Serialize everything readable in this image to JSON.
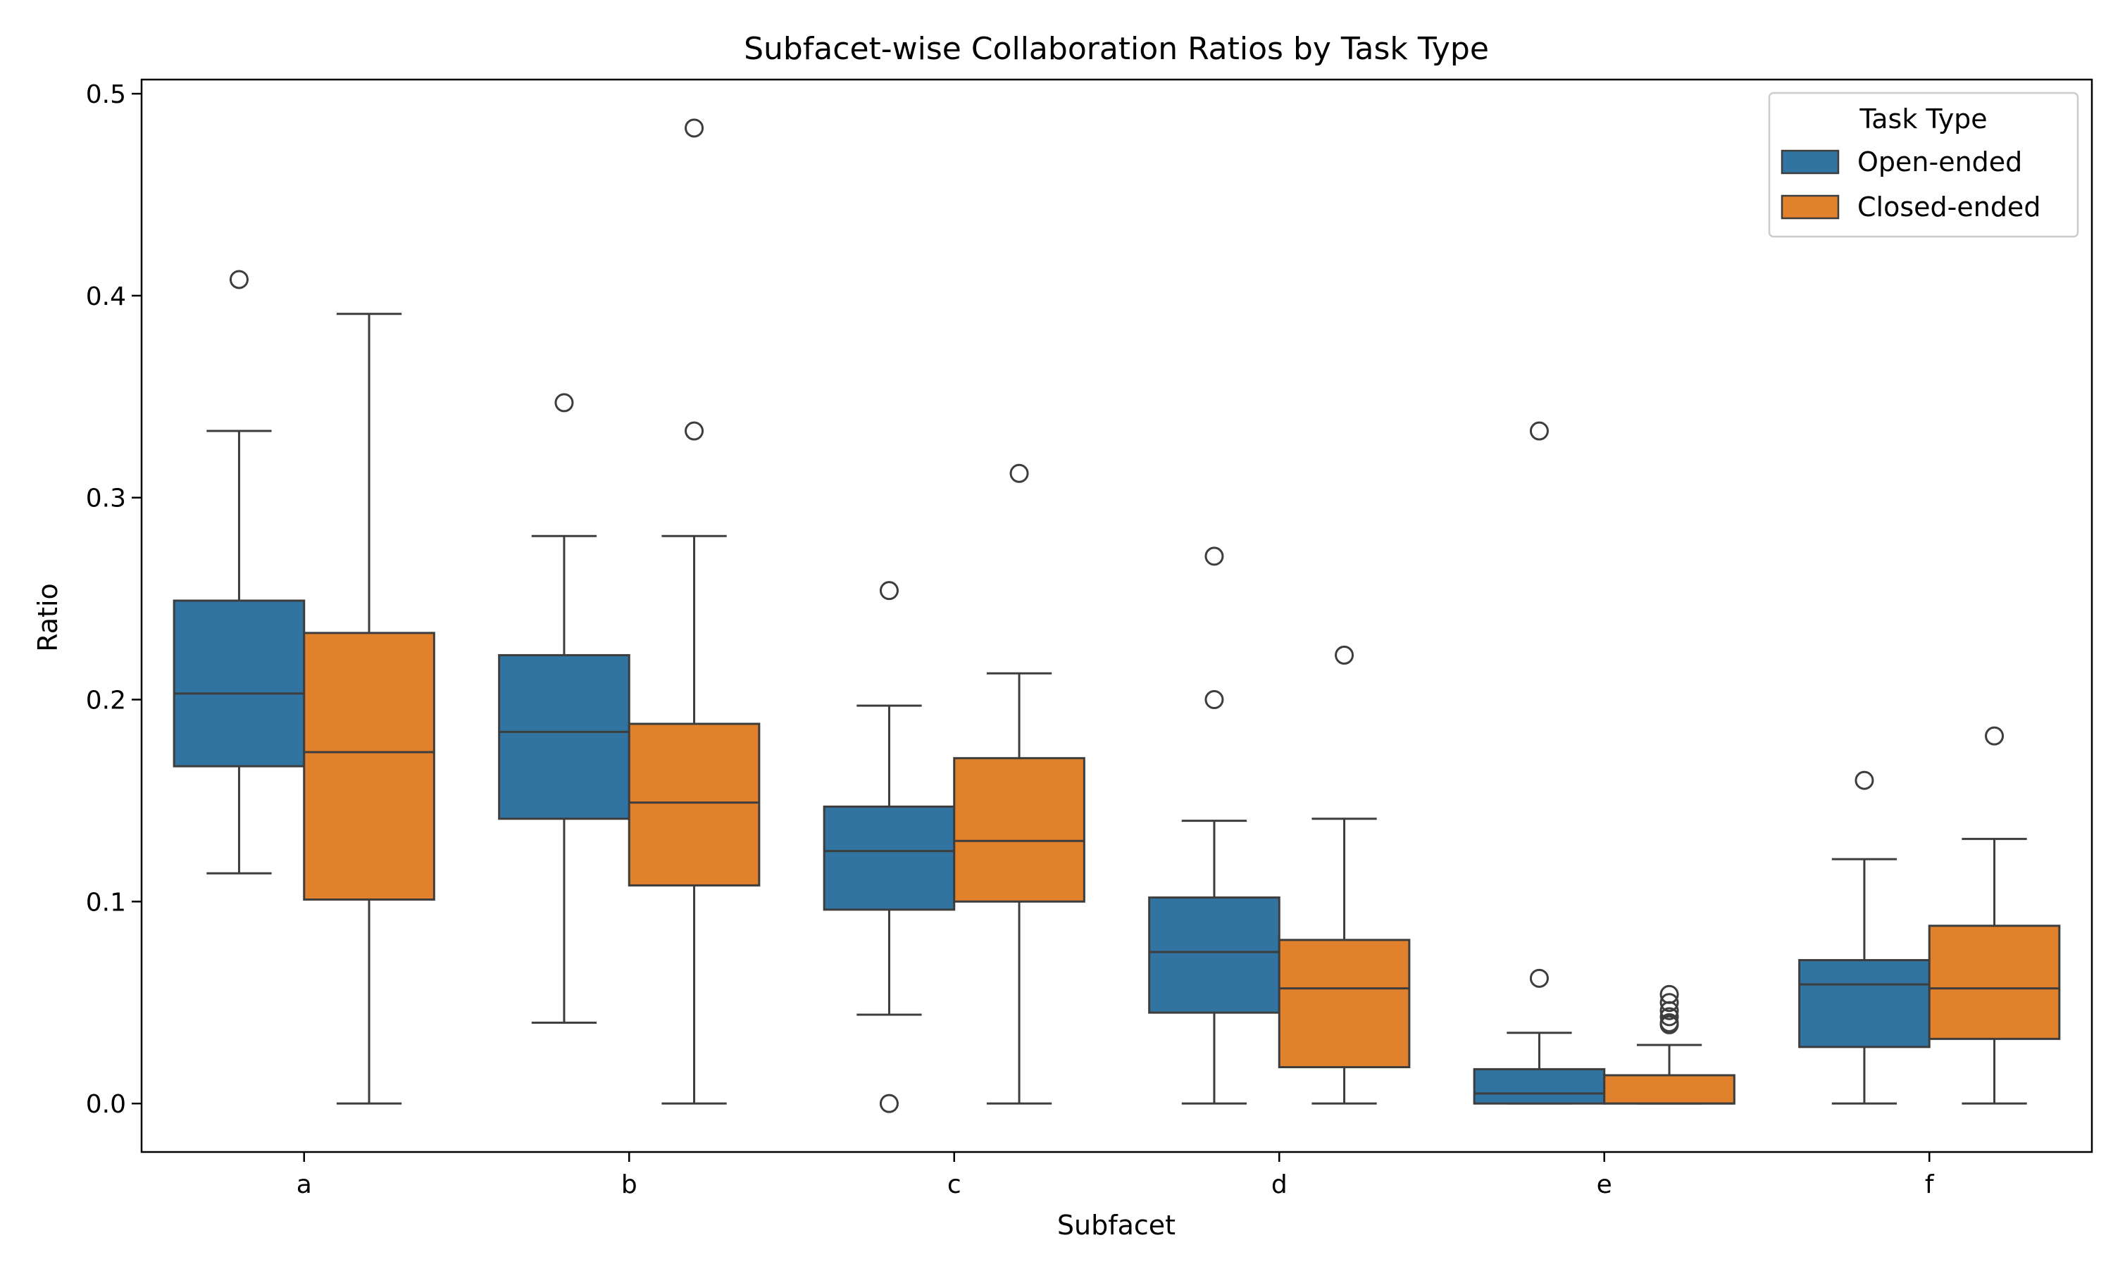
{
  "chart_data": {
    "type": "box",
    "title": "Subfacet-wise Collaboration Ratios by Task Type",
    "xlabel": "Subfacet",
    "ylabel": "Ratio",
    "categories": [
      "a",
      "b",
      "c",
      "d",
      "e",
      "f"
    ],
    "ylim": [
      -0.024,
      0.507
    ],
    "yticks": [
      0.0,
      0.1,
      0.2,
      0.3,
      0.4,
      0.5
    ],
    "ytick_labels": [
      "0.0",
      "0.1",
      "0.2",
      "0.3",
      "0.4",
      "0.5"
    ],
    "grid": false,
    "legend": {
      "title": "Task Type",
      "placement": "top-right"
    },
    "series": [
      {
        "name": "Open-ended",
        "color": "#3274a1",
        "boxes": [
          {
            "category": "a",
            "whisker_low": 0.114,
            "q1": 0.167,
            "median": 0.203,
            "q3": 0.249,
            "whisker_high": 0.333,
            "outliers": [
              0.408
            ]
          },
          {
            "category": "b",
            "whisker_low": 0.04,
            "q1": 0.141,
            "median": 0.184,
            "q3": 0.222,
            "whisker_high": 0.281,
            "outliers": [
              0.347
            ]
          },
          {
            "category": "c",
            "whisker_low": 0.044,
            "q1": 0.096,
            "median": 0.125,
            "q3": 0.147,
            "whisker_high": 0.197,
            "outliers": [
              0.254,
              0.0
            ]
          },
          {
            "category": "d",
            "whisker_low": 0.0,
            "q1": 0.045,
            "median": 0.075,
            "q3": 0.102,
            "whisker_high": 0.14,
            "outliers": [
              0.271,
              0.2
            ]
          },
          {
            "category": "e",
            "whisker_low": 0.0,
            "q1": 0.0,
            "median": 0.005,
            "q3": 0.017,
            "whisker_high": 0.035,
            "outliers": [
              0.333,
              0.062
            ]
          },
          {
            "category": "f",
            "whisker_low": 0.0,
            "q1": 0.028,
            "median": 0.059,
            "q3": 0.071,
            "whisker_high": 0.121,
            "outliers": [
              0.16
            ]
          }
        ]
      },
      {
        "name": "Closed-ended",
        "color": "#e1812c",
        "boxes": [
          {
            "category": "a",
            "whisker_low": 0.0,
            "q1": 0.101,
            "median": 0.174,
            "q3": 0.233,
            "whisker_high": 0.391,
            "outliers": []
          },
          {
            "category": "b",
            "whisker_low": 0.0,
            "q1": 0.108,
            "median": 0.149,
            "q3": 0.188,
            "whisker_high": 0.281,
            "outliers": [
              0.483,
              0.333
            ]
          },
          {
            "category": "c",
            "whisker_low": 0.0,
            "q1": 0.1,
            "median": 0.13,
            "q3": 0.171,
            "whisker_high": 0.213,
            "outliers": [
              0.312
            ]
          },
          {
            "category": "d",
            "whisker_low": 0.0,
            "q1": 0.018,
            "median": 0.057,
            "q3": 0.081,
            "whisker_high": 0.141,
            "outliers": [
              0.222
            ]
          },
          {
            "category": "e",
            "whisker_low": 0.0,
            "q1": 0.0,
            "median": 0.0,
            "q3": 0.014,
            "whisker_high": 0.029,
            "outliers": [
              0.054,
              0.05,
              0.046,
              0.043,
              0.04,
              0.039
            ]
          },
          {
            "category": "f",
            "whisker_low": 0.0,
            "q1": 0.032,
            "median": 0.057,
            "q3": 0.088,
            "whisker_high": 0.131,
            "outliers": [
              0.182
            ]
          }
        ]
      }
    ]
  }
}
